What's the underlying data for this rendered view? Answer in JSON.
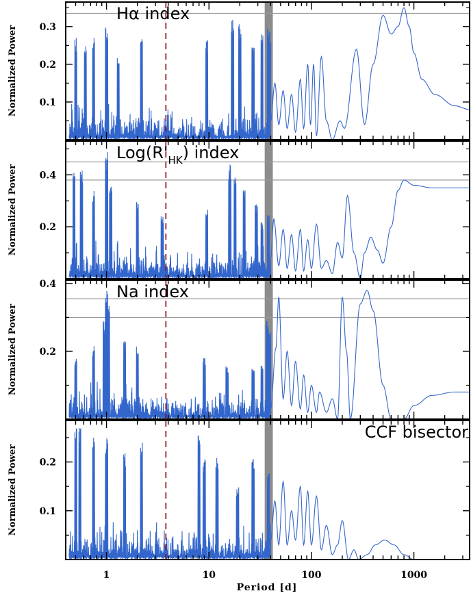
{
  "chart_data": [
    {
      "type": "line",
      "title_main": "Hα index",
      "title_sub": "",
      "title_tail": "",
      "ylabel": "Normalized Power",
      "xlabel": "",
      "xscale": "log",
      "xlim": [
        0.4,
        3500
      ],
      "ylim": [
        0,
        0.365
      ],
      "yticks": [
        "0.1",
        "0.2",
        "0.3"
      ],
      "ytick_values": [
        0.1,
        0.2,
        0.3
      ],
      "hlines": [
        0.335
      ],
      "highlight_band": [
        35,
        42
      ],
      "dashed_line": 3.8,
      "series_color": "#3366cc",
      "peaks": [
        [
          0.5,
          0.27
        ],
        [
          0.62,
          0.25
        ],
        [
          0.75,
          0.28
        ],
        [
          1.0,
          0.31
        ],
        [
          1.3,
          0.22
        ],
        [
          2.2,
          0.27
        ],
        [
          9.5,
          0.27
        ],
        [
          17,
          0.33
        ],
        [
          20,
          0.31
        ],
        [
          27,
          0.26
        ],
        [
          33,
          0.29
        ],
        [
          38,
          0.31
        ],
        [
          40,
          0.29
        ],
        [
          43,
          0.22
        ]
      ],
      "smooth": [
        [
          40,
          0.05
        ],
        [
          44,
          0.15
        ],
        [
          48,
          0.04
        ],
        [
          53,
          0.13
        ],
        [
          58,
          0.03
        ],
        [
          64,
          0.12
        ],
        [
          70,
          0.02
        ],
        [
          78,
          0.16
        ],
        [
          84,
          0.03
        ],
        [
          92,
          0.2
        ],
        [
          98,
          0.04
        ],
        [
          105,
          0.2
        ],
        [
          112,
          0.01
        ],
        [
          125,
          0.22
        ],
        [
          140,
          0.05
        ],
        [
          160,
          0.0
        ],
        [
          190,
          0.05
        ],
        [
          210,
          0.03
        ],
        [
          275,
          0.24
        ],
        [
          330,
          0.04
        ],
        [
          400,
          0.2
        ],
        [
          500,
          0.33
        ],
        [
          600,
          0.28
        ],
        [
          700,
          0.3
        ],
        [
          800,
          0.35
        ],
        [
          900,
          0.3
        ],
        [
          1000,
          0.23
        ],
        [
          1200,
          0.16
        ],
        [
          1600,
          0.12
        ],
        [
          2500,
          0.09
        ],
        [
          3500,
          0.08
        ]
      ]
    },
    {
      "type": "line",
      "title_main": "Log(R'",
      "title_sub": "HK",
      "title_tail": ") index",
      "ylabel": "Normalized Power",
      "xlabel": "",
      "xscale": "log",
      "xlim": [
        0.4,
        3500
      ],
      "ylim": [
        0,
        0.53
      ],
      "yticks": [
        "0.2",
        "0.4"
      ],
      "ytick_values": [
        0.2,
        0.4
      ],
      "hlines": [
        0.38,
        0.45
      ],
      "highlight_band": [
        35,
        42
      ],
      "dashed_line": 3.8,
      "series_color": "#3366cc",
      "peaks": [
        [
          0.48,
          0.42
        ],
        [
          0.57,
          0.42
        ],
        [
          0.75,
          0.34
        ],
        [
          1.0,
          0.49
        ],
        [
          1.1,
          0.36
        ],
        [
          2.0,
          0.3
        ],
        [
          3.5,
          0.25
        ],
        [
          9.5,
          0.28
        ],
        [
          16,
          0.44
        ],
        [
          18,
          0.39
        ],
        [
          22,
          0.36
        ],
        [
          29,
          0.29
        ],
        [
          33,
          0.22
        ],
        [
          38,
          0.25
        ]
      ],
      "smooth": [
        [
          40,
          0.08
        ],
        [
          43,
          0.23
        ],
        [
          48,
          0.05
        ],
        [
          53,
          0.19
        ],
        [
          58,
          0.04
        ],
        [
          64,
          0.17
        ],
        [
          70,
          0.03
        ],
        [
          78,
          0.19
        ],
        [
          84,
          0.03
        ],
        [
          92,
          0.15
        ],
        [
          100,
          0.04
        ],
        [
          112,
          0.21
        ],
        [
          125,
          0.04
        ],
        [
          140,
          0.07
        ],
        [
          160,
          0.02
        ],
        [
          180,
          0.14
        ],
        [
          200,
          0.08
        ],
        [
          225,
          0.32
        ],
        [
          260,
          0.1
        ],
        [
          300,
          0.0
        ],
        [
          330,
          0.1
        ],
        [
          380,
          0.16
        ],
        [
          440,
          0.11
        ],
        [
          500,
          0.06
        ],
        [
          600,
          0.2
        ],
        [
          700,
          0.34
        ],
        [
          800,
          0.38
        ],
        [
          1000,
          0.36
        ],
        [
          1500,
          0.35
        ],
        [
          2500,
          0.35
        ],
        [
          3500,
          0.35
        ]
      ]
    },
    {
      "type": "line",
      "title_main": "Na index",
      "title_sub": "",
      "title_tail": "",
      "ylabel": "Normalized Power",
      "xlabel": "",
      "xscale": "log",
      "xlim": [
        0.4,
        3500
      ],
      "ylim": [
        0,
        0.41
      ],
      "yticks": [
        "0.2",
        "0.4"
      ],
      "ytick_values": [
        0.2,
        0.4
      ],
      "hlines": [
        0.3,
        0.355
      ],
      "highlight_band": [
        35,
        42
      ],
      "dashed_line": 3.8,
      "series_color": "#3366cc",
      "peaks": [
        [
          0.5,
          0.18
        ],
        [
          0.75,
          0.22
        ],
        [
          0.95,
          0.3
        ],
        [
          1.0,
          0.39
        ],
        [
          1.05,
          0.35
        ],
        [
          1.5,
          0.24
        ],
        [
          2.0,
          0.22
        ],
        [
          9.0,
          0.18
        ],
        [
          15,
          0.16
        ],
        [
          27,
          0.16
        ],
        [
          33,
          0.16
        ],
        [
          37,
          0.3
        ],
        [
          39,
          0.27
        ],
        [
          42,
          0.24
        ]
      ],
      "smooth": [
        [
          40,
          0.03
        ],
        [
          45,
          0.21
        ],
        [
          48,
          0.36
        ],
        [
          53,
          0.06
        ],
        [
          58,
          0.2
        ],
        [
          64,
          0.04
        ],
        [
          70,
          0.17
        ],
        [
          78,
          0.03
        ],
        [
          84,
          0.13
        ],
        [
          92,
          0.02
        ],
        [
          100,
          0.1
        ],
        [
          112,
          0.02
        ],
        [
          120,
          0.08
        ],
        [
          140,
          0.02
        ],
        [
          160,
          0.06
        ],
        [
          180,
          0.0
        ],
        [
          200,
          0.36
        ],
        [
          220,
          0.2
        ],
        [
          240,
          0.0
        ],
        [
          300,
          0.34
        ],
        [
          350,
          0.38
        ],
        [
          400,
          0.32
        ],
        [
          500,
          0.1
        ],
        [
          600,
          0.0
        ],
        [
          800,
          0.0
        ],
        [
          1000,
          0.04
        ],
        [
          1500,
          0.07
        ],
        [
          2500,
          0.08
        ],
        [
          3500,
          0.08
        ]
      ]
    },
    {
      "type": "line",
      "title_main": "CCF bisector",
      "title_sub": "",
      "title_tail": "",
      "ylabel": "Normalized Power",
      "xlabel": "Period [d]",
      "xscale": "log",
      "xlim": [
        0.4,
        3500
      ],
      "ylim": [
        0,
        0.285
      ],
      "yticks": [
        "0.1",
        "0.2"
      ],
      "ytick_values": [
        0.1,
        0.2
      ],
      "hlines": [],
      "highlight_band": [
        35,
        42
      ],
      "dashed_line": 3.8,
      "series_color": "#3366cc",
      "xticks": [
        "1",
        "10",
        "100",
        "1000"
      ],
      "xtick_values": [
        1,
        10,
        100,
        1000
      ],
      "peaks": [
        [
          0.5,
          0.27
        ],
        [
          0.55,
          0.27
        ],
        [
          0.75,
          0.25
        ],
        [
          1.0,
          0.25
        ],
        [
          1.5,
          0.22
        ],
        [
          2.2,
          0.25
        ],
        [
          8.0,
          0.27
        ],
        [
          9.0,
          0.21
        ],
        [
          12,
          0.21
        ],
        [
          19,
          0.15
        ],
        [
          27,
          0.21
        ],
        [
          38,
          0.18
        ]
      ],
      "smooth": [
        [
          40,
          0.04
        ],
        [
          44,
          0.12
        ],
        [
          48,
          0.03
        ],
        [
          53,
          0.16
        ],
        [
          58,
          0.03
        ],
        [
          64,
          0.1
        ],
        [
          70,
          0.04
        ],
        [
          78,
          0.15
        ],
        [
          84,
          0.03
        ],
        [
          92,
          0.14
        ],
        [
          100,
          0.03
        ],
        [
          112,
          0.13
        ],
        [
          125,
          0.02
        ],
        [
          140,
          0.07
        ],
        [
          160,
          0.01
        ],
        [
          180,
          0.03
        ],
        [
          200,
          0.08
        ],
        [
          230,
          0.0
        ],
        [
          260,
          0.02
        ],
        [
          290,
          0.0
        ],
        [
          350,
          0.01
        ],
        [
          420,
          0.03
        ],
        [
          520,
          0.04
        ],
        [
          640,
          0.03
        ],
        [
          800,
          0.01
        ],
        [
          1000,
          0.0
        ],
        [
          1500,
          0.0
        ],
        [
          3500,
          0.0
        ]
      ]
    }
  ]
}
